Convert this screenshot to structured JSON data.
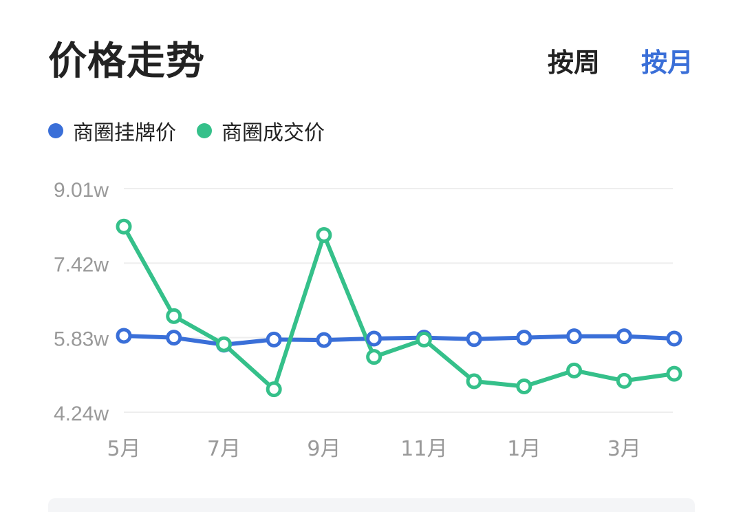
{
  "header": {
    "title": "价格走势",
    "toggle_week": "按周",
    "toggle_month": "按月",
    "active": "month"
  },
  "colors": {
    "listing": "#3a6fd8",
    "deal": "#35c08a",
    "accent": "#3a6fd8",
    "grid": "#eeeeee",
    "axis_text": "#999999"
  },
  "chart_data": {
    "type": "line",
    "title": "",
    "xlabel": "",
    "ylabel": "",
    "x": [
      "5月",
      "6月",
      "7月",
      "8月",
      "9月",
      "10月",
      "11月",
      "12月",
      "1月",
      "2月",
      "3月",
      "4月"
    ],
    "x_tick_labels": [
      "5月",
      "7月",
      "9月",
      "11月",
      "1月",
      "3月"
    ],
    "y_tick_labels": [
      "9.01w",
      "7.42w",
      "5.83w",
      "4.24w"
    ],
    "y_ticks": [
      9.01,
      7.42,
      5.83,
      4.24
    ],
    "ylim": [
      4.24,
      9.01
    ],
    "grid": true,
    "legend_position": "top-left",
    "series": [
      {
        "name": "商圈挂牌价",
        "values": [
          5.87,
          5.83,
          5.68,
          5.79,
          5.78,
          5.81,
          5.83,
          5.8,
          5.83,
          5.86,
          5.86,
          5.81
        ]
      },
      {
        "name": "商圈成交价",
        "values": [
          8.2,
          6.29,
          5.69,
          4.73,
          8.02,
          5.42,
          5.79,
          4.9,
          4.79,
          5.13,
          4.91,
          5.06
        ]
      }
    ]
  }
}
